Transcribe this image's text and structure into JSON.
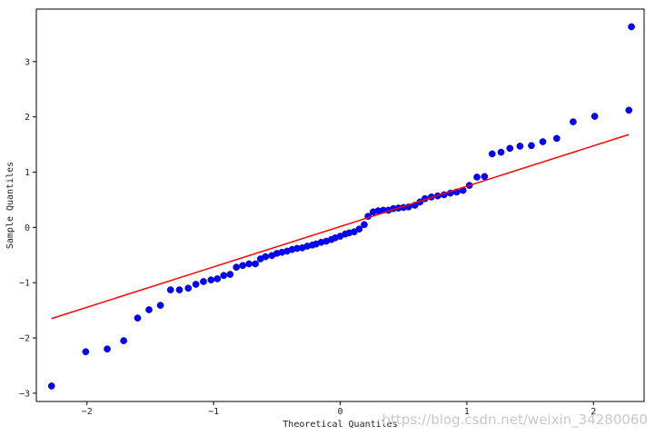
{
  "chart_data": {
    "type": "scatter",
    "title": "",
    "xlabel": "Theoretical Quantiles",
    "ylabel": "Sample Quantiles",
    "xlim": [
      -2.4,
      2.4
    ],
    "ylim": [
      -3.15,
      3.95
    ],
    "x_ticks": [
      -2,
      -1,
      0,
      1,
      2
    ],
    "y_ticks": [
      -3,
      -2,
      -1,
      0,
      1,
      2,
      3
    ],
    "x_tick_labels": [
      "−2",
      "−1",
      "0",
      "1",
      "2"
    ],
    "y_tick_labels": [
      "−3",
      "−2",
      "−1",
      "0",
      "1",
      "2",
      "3"
    ],
    "grid": false,
    "colors": {
      "points": "#0000ff",
      "point_edge": "#0000aa",
      "line": "#ff0000"
    },
    "reference_line": {
      "x": [
        -2.28,
        2.28
      ],
      "y": [
        -1.65,
        1.68
      ]
    },
    "points": [
      [
        -2.28,
        -2.87
      ],
      [
        -2.01,
        -2.25
      ],
      [
        -1.84,
        -2.2
      ],
      [
        -1.71,
        -2.05
      ],
      [
        -1.6,
        -1.64
      ],
      [
        -1.51,
        -1.49
      ],
      [
        -1.42,
        -1.41
      ],
      [
        -1.34,
        -1.13
      ],
      [
        -1.27,
        -1.13
      ],
      [
        -1.2,
        -1.1
      ],
      [
        -1.14,
        -1.03
      ],
      [
        -1.08,
        -0.98
      ],
      [
        -1.02,
        -0.95
      ],
      [
        -0.97,
        -0.93
      ],
      [
        -0.92,
        -0.87
      ],
      [
        -0.87,
        -0.85
      ],
      [
        -0.82,
        -0.72
      ],
      [
        -0.77,
        -0.69
      ],
      [
        -0.72,
        -0.66
      ],
      [
        -0.67,
        -0.66
      ],
      [
        -0.63,
        -0.57
      ],
      [
        -0.59,
        -0.53
      ],
      [
        -0.54,
        -0.51
      ],
      [
        -0.5,
        -0.47
      ],
      [
        -0.46,
        -0.45
      ],
      [
        -0.42,
        -0.43
      ],
      [
        -0.38,
        -0.4
      ],
      [
        -0.34,
        -0.38
      ],
      [
        -0.3,
        -0.37
      ],
      [
        -0.26,
        -0.34
      ],
      [
        -0.22,
        -0.32
      ],
      [
        -0.19,
        -0.3
      ],
      [
        -0.15,
        -0.27
      ],
      [
        -0.11,
        -0.25
      ],
      [
        -0.07,
        -0.22
      ],
      [
        -0.04,
        -0.19
      ],
      [
        0.0,
        -0.16
      ],
      [
        0.04,
        -0.12
      ],
      [
        0.07,
        -0.1
      ],
      [
        0.11,
        -0.08
      ],
      [
        0.15,
        -0.03
      ],
      [
        0.19,
        0.05
      ],
      [
        0.22,
        0.2
      ],
      [
        0.26,
        0.28
      ],
      [
        0.3,
        0.3
      ],
      [
        0.34,
        0.31
      ],
      [
        0.38,
        0.31
      ],
      [
        0.42,
        0.34
      ],
      [
        0.46,
        0.35
      ],
      [
        0.5,
        0.36
      ],
      [
        0.54,
        0.37
      ],
      [
        0.59,
        0.4
      ],
      [
        0.63,
        0.46
      ],
      [
        0.67,
        0.52
      ],
      [
        0.72,
        0.55
      ],
      [
        0.77,
        0.57
      ],
      [
        0.82,
        0.59
      ],
      [
        0.87,
        0.62
      ],
      [
        0.92,
        0.64
      ],
      [
        0.97,
        0.67
      ],
      [
        1.02,
        0.76
      ],
      [
        1.08,
        0.91
      ],
      [
        1.14,
        0.92
      ],
      [
        1.2,
        1.33
      ],
      [
        1.27,
        1.36
      ],
      [
        1.34,
        1.43
      ],
      [
        1.42,
        1.47
      ],
      [
        1.51,
        1.48
      ],
      [
        1.6,
        1.55
      ],
      [
        1.71,
        1.61
      ],
      [
        1.84,
        1.91
      ],
      [
        2.01,
        2.01
      ],
      [
        2.28,
        2.12
      ],
      [
        2.3,
        3.63
      ]
    ]
  },
  "watermark": "https://blog.csdn.net/weixin_34280060"
}
